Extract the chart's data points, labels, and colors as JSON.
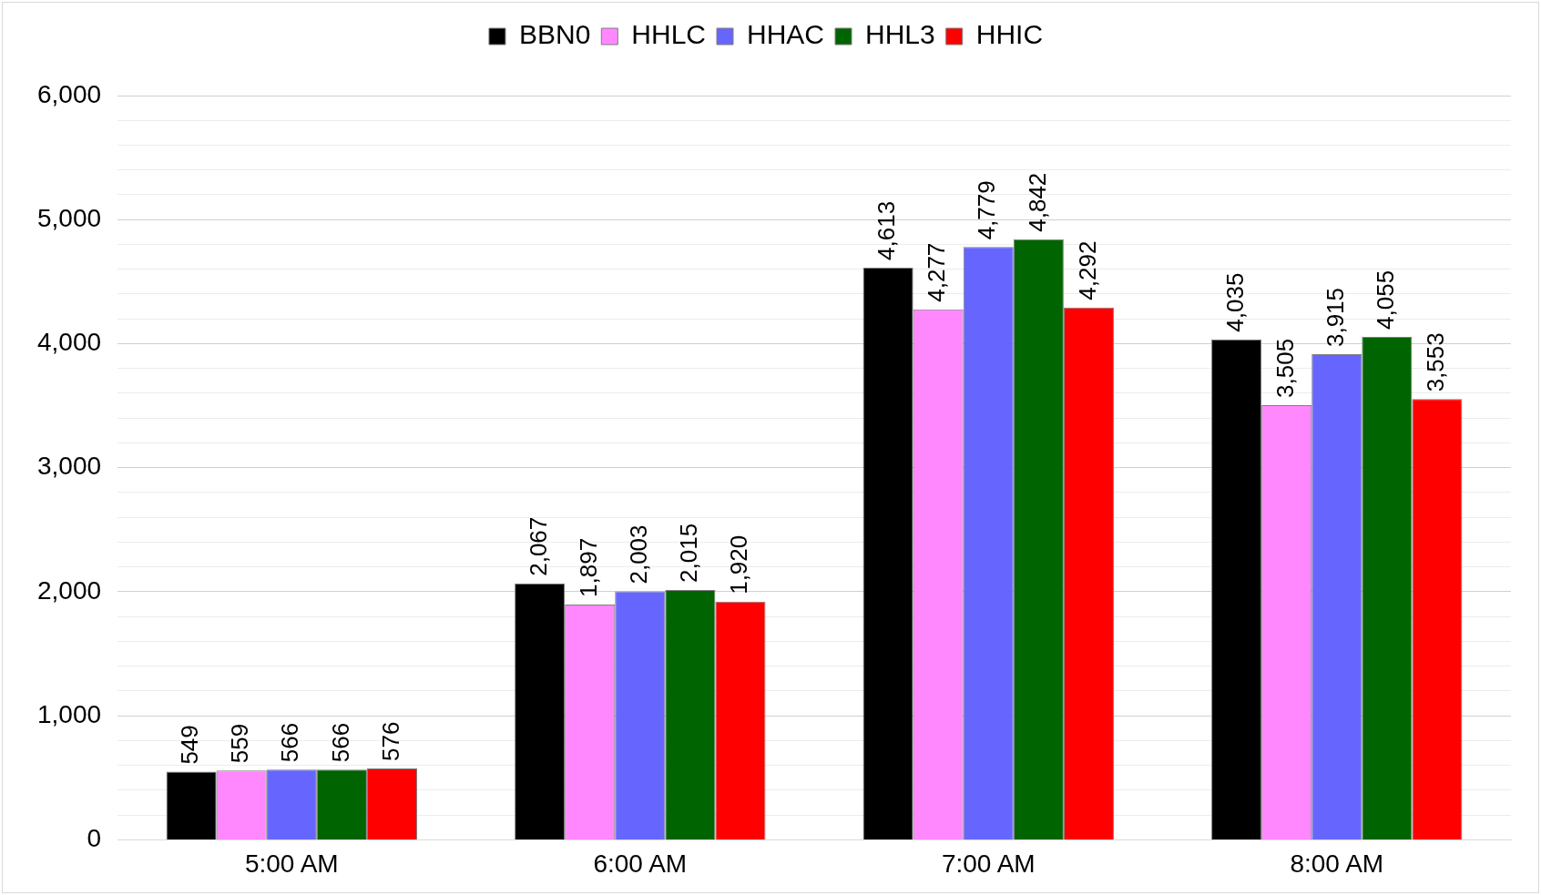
{
  "chart_data": {
    "type": "bar",
    "categories": [
      "5:00 AM",
      "6:00 AM",
      "7:00 AM",
      "8:00 AM"
    ],
    "series": [
      {
        "name": "BBN0",
        "color": "#000000",
        "values": [
          549,
          2067,
          4613,
          4035
        ],
        "value_labels": [
          "549",
          "2,067",
          "4,613",
          "4,035"
        ]
      },
      {
        "name": "HHLC",
        "color": "#ff88ff",
        "values": [
          559,
          1897,
          4277,
          3505
        ],
        "value_labels": [
          "559",
          "1,897",
          "4,277",
          "3,505"
        ]
      },
      {
        "name": "HHAC",
        "color": "#6666ff",
        "values": [
          566,
          2003,
          4779,
          3915
        ],
        "value_labels": [
          "566",
          "2,003",
          "4,779",
          "3,915"
        ]
      },
      {
        "name": "HHL3",
        "color": "#006400",
        "values": [
          566,
          2015,
          4842,
          4055
        ],
        "value_labels": [
          "566",
          "2,015",
          "4,842",
          "4,055"
        ]
      },
      {
        "name": "HHIC",
        "color": "#ff0000",
        "values": [
          576,
          1920,
          4292,
          3553
        ],
        "value_labels": [
          "576",
          "1,920",
          "4,292",
          "3,553"
        ]
      }
    ],
    "ylim": [
      0,
      6000
    ],
    "yticks": [
      0,
      {
        "value": 200,
        "label": null
      },
      {
        "value": 400,
        "label": null
      },
      {
        "value": 600,
        "label": null
      },
      {
        "value": 800,
        "label": null
      },
      {
        "value": 1000,
        "label": "1,000"
      },
      {
        "value": 1200,
        "label": null
      },
      {
        "value": 1400,
        "label": null
      },
      {
        "value": 1600,
        "label": null
      },
      {
        "value": 1800,
        "label": null
      },
      {
        "value": 2000,
        "label": "2,000"
      },
      {
        "value": 2200,
        "label": null
      },
      {
        "value": 2400,
        "label": null
      },
      {
        "value": 2600,
        "label": null
      },
      {
        "value": 2800,
        "label": null
      },
      {
        "value": 3000,
        "label": "3,000"
      },
      {
        "value": 3200,
        "label": null
      },
      {
        "value": 3400,
        "label": null
      },
      {
        "value": 3600,
        "label": null
      },
      {
        "value": 3800,
        "label": null
      },
      {
        "value": 4000,
        "label": "4,000"
      },
      {
        "value": 4200,
        "label": null
      },
      {
        "value": 4400,
        "label": null
      },
      {
        "value": 4600,
        "label": null
      },
      {
        "value": 4800,
        "label": null
      },
      {
        "value": 5000,
        "label": "5,000"
      },
      {
        "value": 5200,
        "label": null
      },
      {
        "value": 5400,
        "label": null
      },
      {
        "value": 5600,
        "label": null
      },
      {
        "value": 5800,
        "label": null
      },
      {
        "value": 6000,
        "label": "6,000"
      }
    ],
    "grid": "y",
    "legend": "top"
  }
}
